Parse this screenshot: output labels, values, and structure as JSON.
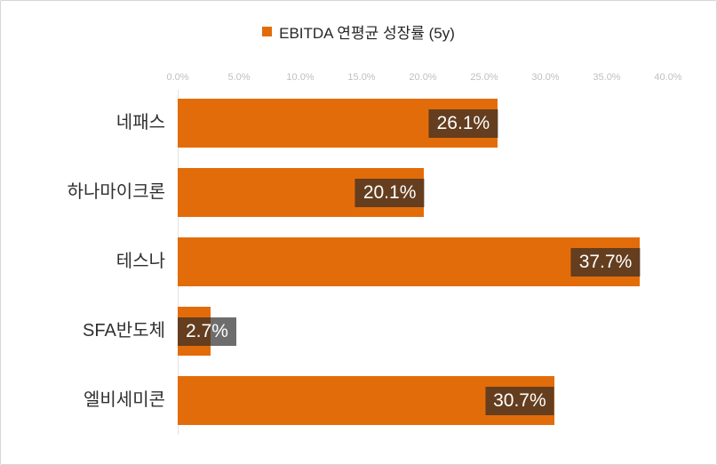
{
  "chart_data": {
    "type": "bar",
    "orientation": "horizontal",
    "title": "EBITDA 연평균 성장률 (5y)",
    "legend": {
      "label": "EBITDA 연평균 성장률 (5y)",
      "position": "top",
      "marker_color": "#E36C0A"
    },
    "categories": [
      "네패스",
      "하나마이크론",
      "테스나",
      "SFA반도체",
      "엘비세미콘"
    ],
    "values": [
      26.1,
      20.1,
      37.7,
      2.7,
      30.7
    ],
    "value_labels": [
      "26.1%",
      "20.1%",
      "37.7%",
      "2.7%",
      "30.7%"
    ],
    "xlim": [
      0,
      40
    ],
    "x_ticks": [
      "0.0%",
      "5.0%",
      "10.0%",
      "15.0%",
      "20.0%",
      "25.0%",
      "30.0%",
      "35.0%",
      "40.0%"
    ],
    "grid": false,
    "colors": {
      "bar": "#E36C0A",
      "value_label_bg": "rgba(40,40,40,0.68)",
      "value_label_text": "#FFFFFF",
      "tick_text": "#BFBFBF",
      "category_text": "#303030"
    }
  }
}
